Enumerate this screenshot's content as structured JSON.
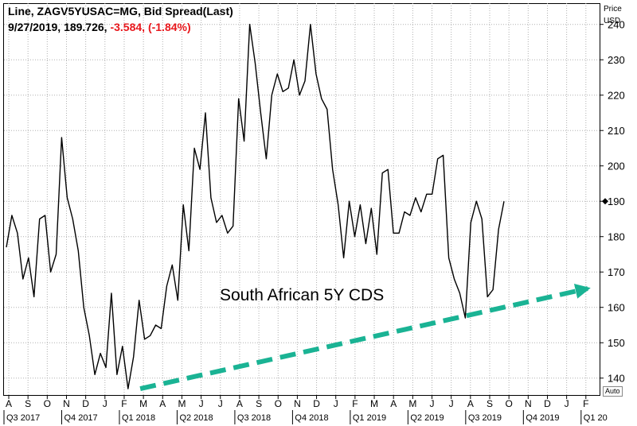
{
  "header": {
    "line1": "Line, ZAGV5YUSAC=MG, Bid Spread(Last)",
    "date": "9/27/2019,",
    "last": "189.726,",
    "change": "-3.584,",
    "change_pct": "(-1.84%)"
  },
  "axis": {
    "title": "Price",
    "unit": "USD",
    "auto_label": "Auto"
  },
  "annotation": "South African 5Y CDS",
  "colors": {
    "line": "#000000",
    "arrow": "#1ab394",
    "negative": "#e8171c",
    "grid": "#b0b0b0"
  },
  "chart_data": {
    "type": "line",
    "series": [
      {
        "values": [
          177,
          186,
          181,
          168,
          174,
          163,
          185,
          186,
          170,
          175,
          208,
          191,
          185,
          176,
          160,
          152,
          141,
          147,
          143,
          164,
          141,
          149,
          137,
          146,
          162,
          151,
          152,
          155,
          154,
          166,
          172,
          162,
          189,
          176,
          205,
          199,
          215,
          191,
          184,
          186,
          181,
          183,
          219,
          207,
          240,
          229,
          215,
          202,
          220,
          226,
          221,
          222,
          230,
          220,
          224,
          240,
          226,
          219,
          216,
          199,
          189,
          174,
          190,
          180,
          189,
          178,
          188,
          175,
          198,
          199,
          181,
          181,
          187,
          186,
          191,
          187,
          192,
          192,
          202,
          203,
          174,
          168,
          164,
          157,
          184,
          190,
          185,
          163,
          165,
          182,
          190
        ],
        "last": 189.726
      }
    ],
    "ylim": [
      135,
      246
    ],
    "yticks": [
      140,
      150,
      160,
      170,
      180,
      190,
      200,
      210,
      220,
      230,
      240
    ],
    "months": [
      "A",
      "S",
      "O",
      "N",
      "D",
      "J",
      "F",
      "M",
      "A",
      "M",
      "J",
      "J",
      "A",
      "S",
      "O",
      "N",
      "D",
      "J",
      "F",
      "M",
      "A",
      "M",
      "J",
      "J",
      "A",
      "S",
      "O",
      "N",
      "D",
      "J",
      "F"
    ],
    "quarters": [
      "Q3 2017",
      "Q4 2017",
      "Q1 2018",
      "Q2 2018",
      "Q3 2018",
      "Q4 2018",
      "Q1 2019",
      "Q2 2019",
      "Q3 2019",
      "Q4 2019",
      "Q1 20"
    ],
    "last_value_tick": 190,
    "grid": true,
    "trend_arrow": {
      "from": [
        137,
        "Mar 2018"
      ],
      "to": [
        166,
        "Jan 2020"
      ]
    }
  }
}
